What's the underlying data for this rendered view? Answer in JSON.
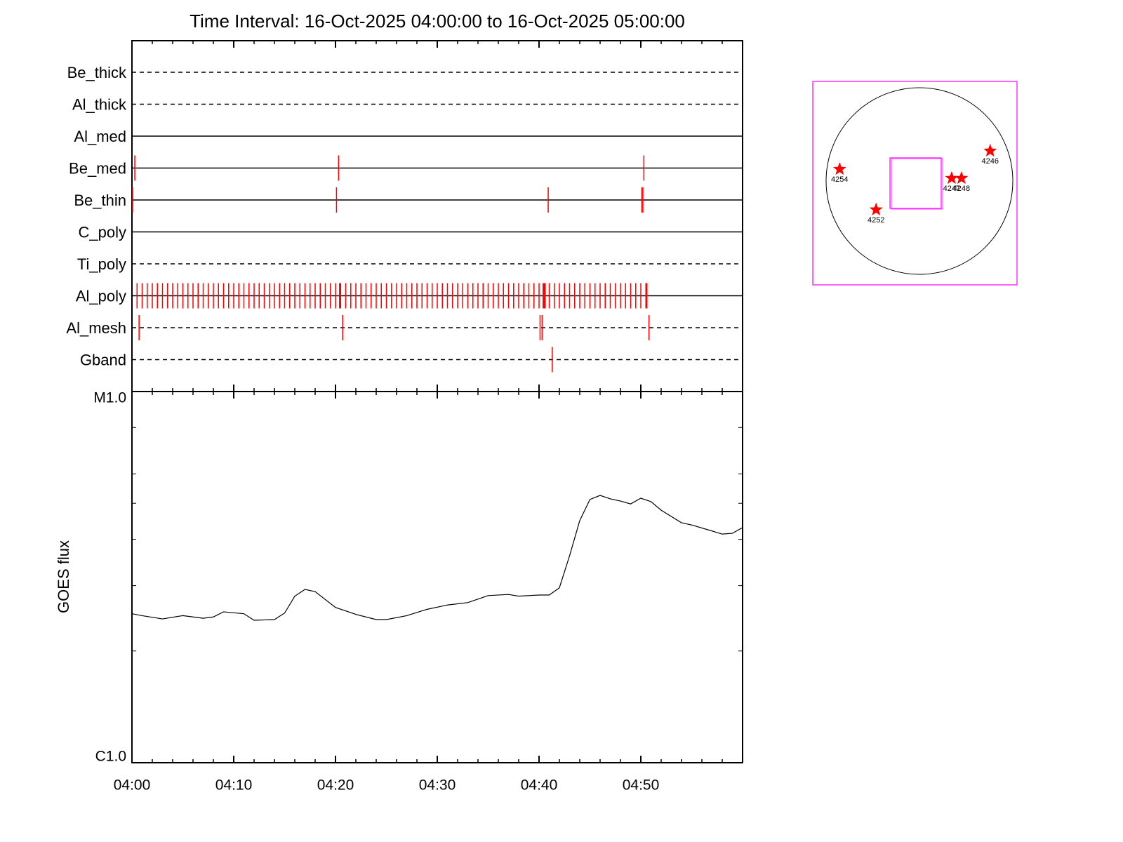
{
  "chart_data": [
    {
      "type": "event",
      "title": "Time Interval: 16-Oct-2025 04:00:00 to 16-Oct-2025 05:00:00",
      "xlim": [
        0,
        60
      ],
      "xticks": [
        0,
        10,
        20,
        30,
        40,
        50
      ],
      "xminorticks": [
        2,
        4,
        6,
        8,
        12,
        14,
        16,
        18,
        22,
        24,
        26,
        28,
        32,
        34,
        36,
        38,
        42,
        44,
        46,
        48,
        52,
        54,
        56,
        58
      ],
      "color": "#ff0000",
      "rows": [
        {
          "name": "Be_thick",
          "style": "dashed",
          "events": []
        },
        {
          "name": "Al_thick",
          "style": "dashed",
          "events": []
        },
        {
          "name": "Al_med",
          "style": "solid",
          "events": []
        },
        {
          "name": "Be_med",
          "style": "solid",
          "events": [
            0.28,
            20.3,
            50.3
          ]
        },
        {
          "name": "Be_thin",
          "style": "solid",
          "events": [
            0.07,
            20.1,
            40.9,
            50.1,
            50.2
          ]
        },
        {
          "name": "C_poly",
          "style": "solid",
          "events": []
        },
        {
          "name": "Ti_poly",
          "style": "dashed",
          "events": []
        },
        {
          "name": "Al_poly",
          "style": "solid",
          "events": [
            0.5,
            1.0,
            1.5,
            2.0,
            2.5,
            3.0,
            3.5,
            4.0,
            4.5,
            5.0,
            5.5,
            6.0,
            6.5,
            7.0,
            7.5,
            8.0,
            8.5,
            9.0,
            9.5,
            10.0,
            10.5,
            11.0,
            11.5,
            12.0,
            12.5,
            13.0,
            13.5,
            14.0,
            14.5,
            15.0,
            15.5,
            16.0,
            16.5,
            17.0,
            17.5,
            18.0,
            18.5,
            19.0,
            19.5,
            20.0,
            20.4,
            20.5,
            21.0,
            21.5,
            22.0,
            22.5,
            23.0,
            23.5,
            24.0,
            24.5,
            25.0,
            25.5,
            26.0,
            26.5,
            27.0,
            27.5,
            28.0,
            28.5,
            29.0,
            29.5,
            30.0,
            30.5,
            31.0,
            31.5,
            32.0,
            32.5,
            33.0,
            33.5,
            34.0,
            34.5,
            35.0,
            35.5,
            36.0,
            36.5,
            37.0,
            37.5,
            38.0,
            38.5,
            39.0,
            39.5,
            40.0,
            40.4,
            40.5,
            40.6,
            41.0,
            41.5,
            42.0,
            42.5,
            43.0,
            43.5,
            44.0,
            44.5,
            45.0,
            45.5,
            46.0,
            46.5,
            47.0,
            47.5,
            48.0,
            48.5,
            49.0,
            49.5,
            50.0,
            50.5,
            50.6
          ]
        },
        {
          "name": "Al_mesh",
          "style": "dashed",
          "events": [
            0.7,
            20.7,
            40.1,
            40.3,
            50.8
          ]
        },
        {
          "name": "Gband",
          "style": "dashed",
          "events": [
            41.3
          ]
        }
      ]
    },
    {
      "type": "line",
      "ylabel": "GOES flux",
      "log_y": true,
      "xlim": [
        0,
        60
      ],
      "xticks": [
        {
          "value": 0,
          "label": "04:00"
        },
        {
          "value": 10,
          "label": "04:10"
        },
        {
          "value": 20,
          "label": "04:20"
        },
        {
          "value": 30,
          "label": "04:30"
        },
        {
          "value": 40,
          "label": "04:40"
        },
        {
          "value": 50,
          "label": "04:50"
        }
      ],
      "xminorticks": [
        2,
        4,
        6,
        8,
        12,
        14,
        16,
        18,
        22,
        24,
        26,
        28,
        32,
        34,
        36,
        38,
        42,
        44,
        46,
        48,
        52,
        54,
        56,
        58
      ],
      "ylim": [
        1e-06,
        1e-05
      ],
      "yticks": [
        {
          "value": 1e-06,
          "label": "C1.0"
        },
        {
          "value": 1e-05,
          "label": "M1.0"
        }
      ],
      "yminorticks": [
        2e-06,
        3e-06,
        4e-06,
        5e-06,
        6e-06,
        8e-06
      ],
      "color": "#000000",
      "x": [
        0,
        1,
        3,
        5,
        7,
        8,
        9,
        11,
        12,
        14,
        15,
        16,
        17,
        18,
        20,
        22,
        24,
        25,
        27,
        29,
        31,
        33,
        35,
        37,
        38,
        40,
        41,
        42,
        43,
        44,
        45,
        46,
        47,
        48,
        49,
        50,
        51,
        52,
        54,
        55,
        57,
        58,
        59,
        60
      ],
      "values": [
        2.52e-06,
        2.49e-06,
        2.44e-06,
        2.49e-06,
        2.45e-06,
        2.47e-06,
        2.55e-06,
        2.52e-06,
        2.42e-06,
        2.43e-06,
        2.53e-06,
        2.81e-06,
        2.93e-06,
        2.89e-06,
        2.62e-06,
        2.51e-06,
        2.43e-06,
        2.43e-06,
        2.49e-06,
        2.59e-06,
        2.66e-06,
        2.7e-06,
        2.82e-06,
        2.84e-06,
        2.81e-06,
        2.83e-06,
        2.83e-06,
        2.96e-06,
        3.61e-06,
        4.49e-06,
        5.12e-06,
        5.25e-06,
        5.14e-06,
        5.07e-06,
        4.98e-06,
        5.16e-06,
        5.05e-06,
        4.79e-06,
        4.43e-06,
        4.37e-06,
        4.21e-06,
        4.13e-06,
        4.15e-06,
        4.3e-06
      ]
    },
    {
      "type": "map",
      "color": "#ff0000",
      "regions": [
        {
          "label": "4246",
          "x": 727,
          "y": 310
        },
        {
          "label": "4254",
          "x": -821,
          "y": 122
        },
        {
          "label": "4252",
          "x": -446,
          "y": -295
        },
        {
          "label": "4247",
          "x": 331,
          "y": 29
        },
        {
          "label": "4248",
          "x": 432,
          "y": 29
        }
      ]
    }
  ]
}
